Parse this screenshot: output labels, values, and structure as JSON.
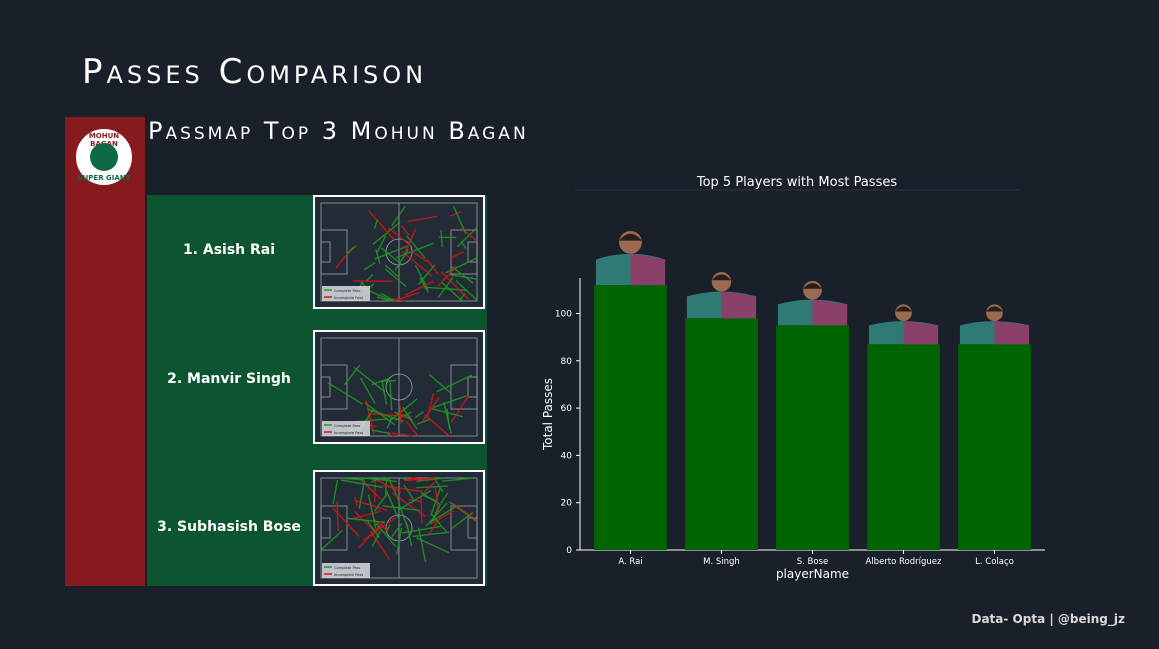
{
  "page": {
    "title": "Passes Comparison",
    "subtitle": "Passmap Top 3 Mohun Bagan",
    "footer": "Data- Opta | @being_jz"
  },
  "logo": {
    "text_top": "MOHUN BAGAN",
    "text_bottom": "SUPER GIANT"
  },
  "passmaps": [
    {
      "label": "1. Asish Rai",
      "legend_complete": "Complete Pass",
      "legend_incomplete": "Incomplete Pass"
    },
    {
      "label": "2. Manvir Singh",
      "legend_complete": "Complete Pass",
      "legend_incomplete": "Incomplete Pass"
    },
    {
      "label": "3. Subhasish Bose",
      "legend_complete": "Complete Pass",
      "legend_incomplete": "Incomplete Pass"
    }
  ],
  "colors": {
    "background": "#19202a",
    "bar": "#006400",
    "complete_pass": "#1f9a1f",
    "incomplete_pass": "#d61515",
    "club_red": "#861a1f",
    "club_green": "#0c5530"
  },
  "chart_data": {
    "type": "bar",
    "title": "Top 5 Players with Most Passes",
    "xlabel": "playerName",
    "ylabel": "Total Passes",
    "categories": [
      "A. Rai",
      "M. Singh",
      "S. Bose",
      "Alberto Rodríguez",
      "L. Colaço"
    ],
    "values": [
      112,
      98,
      95,
      87,
      87
    ],
    "ylim": [
      0,
      115
    ],
    "yticks": [
      0,
      20,
      40,
      60,
      80,
      100
    ],
    "grid": false,
    "bar_images": "player-photo"
  }
}
